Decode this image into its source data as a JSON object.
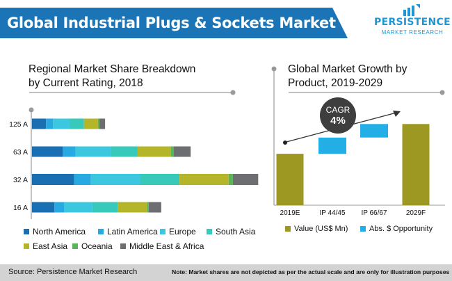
{
  "header": {
    "title": "Global Industrial Plugs & Sockets Market"
  },
  "logo": {
    "brand": "PERSISTENCE",
    "subtitle": "MARKET RESEARCH"
  },
  "footer": {
    "source": "Source: Persistence Market Research",
    "note": "Note: Market shares are not depicted as per the actual scale and are only for illustration purposes"
  },
  "colors": {
    "header": "#1a74b6",
    "north_america": "#1a6fb3",
    "latin_america": "#27a9e1",
    "europe": "#3cc7e1",
    "south_asia": "#37c9b9",
    "east_asia": "#b5b52a",
    "oceania": "#58b55a",
    "middle_east_africa": "#6d6e71",
    "value": "#9c9822",
    "opportunity": "#24aee6"
  },
  "chart_data": [
    {
      "type": "bar",
      "orientation": "horizontal",
      "stacked": true,
      "title": "Regional Market Share Breakdown\nby Current Rating, 2018",
      "categories": [
        "125 A",
        "63 A",
        "32 A",
        "16 A"
      ],
      "series": [
        {
          "name": "North America",
          "values": [
            10,
            22,
            30,
            16
          ]
        },
        {
          "name": "Latin America",
          "values": [
            5,
            9,
            12,
            7
          ]
        },
        {
          "name": "Europe",
          "values": [
            12,
            25,
            35,
            20
          ]
        },
        {
          "name": "South Asia",
          "values": [
            10,
            19,
            28,
            18
          ]
        },
        {
          "name": "East Asia",
          "values": [
            10,
            24,
            35,
            21
          ]
        },
        {
          "name": "Oceania",
          "values": [
            1,
            2,
            3,
            1
          ]
        },
        {
          "name": "Middle East & Africa",
          "values": [
            4,
            12,
            18,
            9
          ]
        }
      ],
      "legend": "bottom"
    },
    {
      "type": "bar",
      "subtype": "waterfall",
      "title": "Global Market Growth by\nProduct, 2019-2029",
      "categories": [
        "2019E",
        "IP 44/45",
        "IP 66/67",
        "2029F"
      ],
      "bars": [
        {
          "kind": "value",
          "start": 0,
          "end": 38
        },
        {
          "kind": "opportunity",
          "start": 38,
          "end": 50
        },
        {
          "kind": "opportunity",
          "start": 50,
          "end": 60
        },
        {
          "kind": "value",
          "start": 0,
          "end": 60
        }
      ],
      "legend_items": [
        "Value (US$ Mn)",
        "Abs. $ Opportunity"
      ],
      "annotation": {
        "label": "CAGR",
        "value": "4%"
      },
      "ylim": [
        0,
        72
      ]
    }
  ]
}
